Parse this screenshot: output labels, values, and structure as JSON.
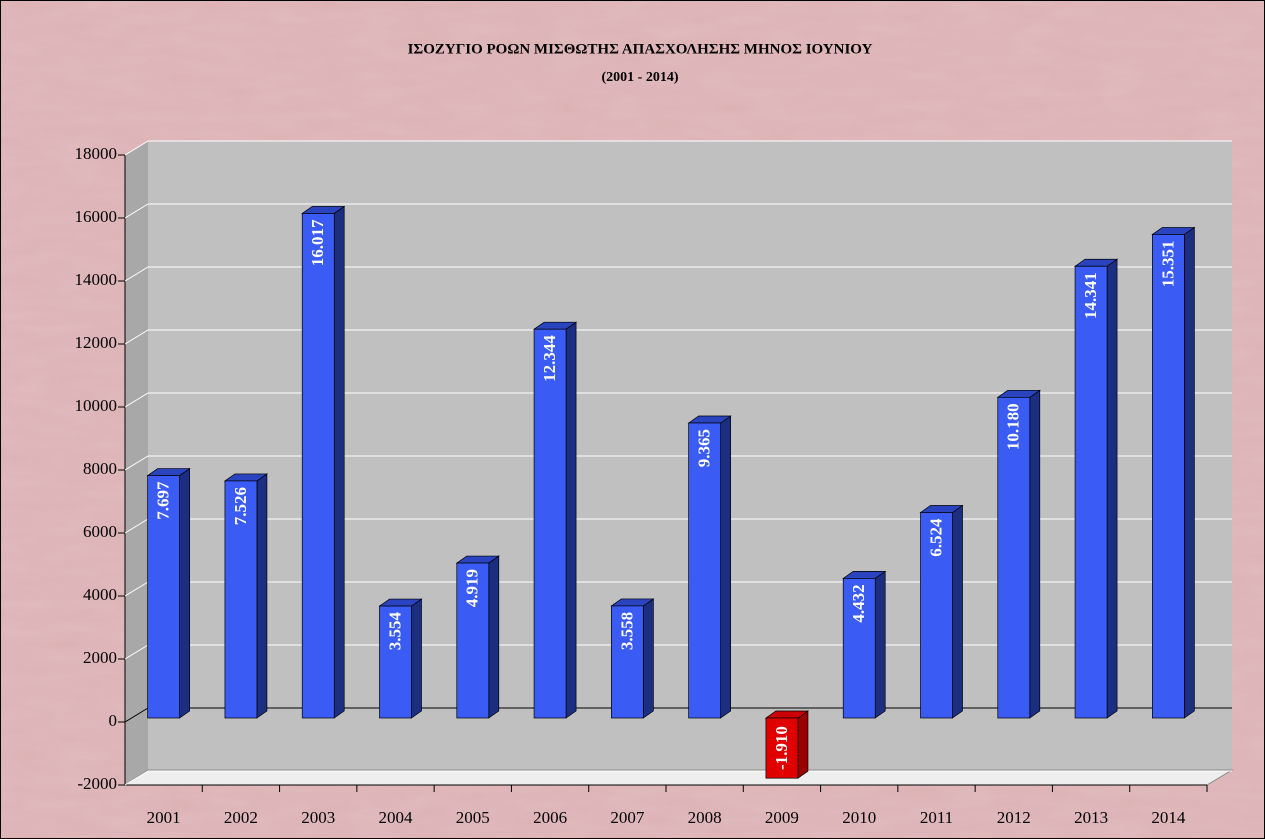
{
  "chart_data": {
    "type": "bar",
    "title": "ΙΣΟΖΥΓΙΟ ΡΟΩΝ ΜΙΣΘΩΤΗΣ ΑΠΑΣΧΟΛΗΣΗΣ ΜΗΝΟΣ  ΙΟΥΝΙΟΥ",
    "subtitle": "(2001 - 2014)",
    "categories": [
      "2001",
      "2002",
      "2003",
      "2004",
      "2005",
      "2006",
      "2007",
      "2008",
      "2009",
      "2010",
      "2011",
      "2012",
      "2013",
      "2014"
    ],
    "values": [
      7697,
      7526,
      16017,
      3554,
      4919,
      12344,
      3558,
      9365,
      -1910,
      4432,
      6524,
      10180,
      14341,
      15351
    ],
    "value_labels": [
      "7.697",
      "7.526",
      "16.017",
      "3.554",
      "4.919",
      "12.344",
      "3.558",
      "9.365",
      "-1.910",
      "4.432",
      "6.524",
      "10.180",
      "14.341",
      "15.351"
    ],
    "color": "#3a5cf5",
    "negative_color": "#e00000",
    "ylim": [
      -2000,
      18000
    ],
    "yticks": [
      -2000,
      0,
      2000,
      4000,
      6000,
      8000,
      10000,
      12000,
      14000,
      16000,
      18000
    ],
    "grid": true
  }
}
